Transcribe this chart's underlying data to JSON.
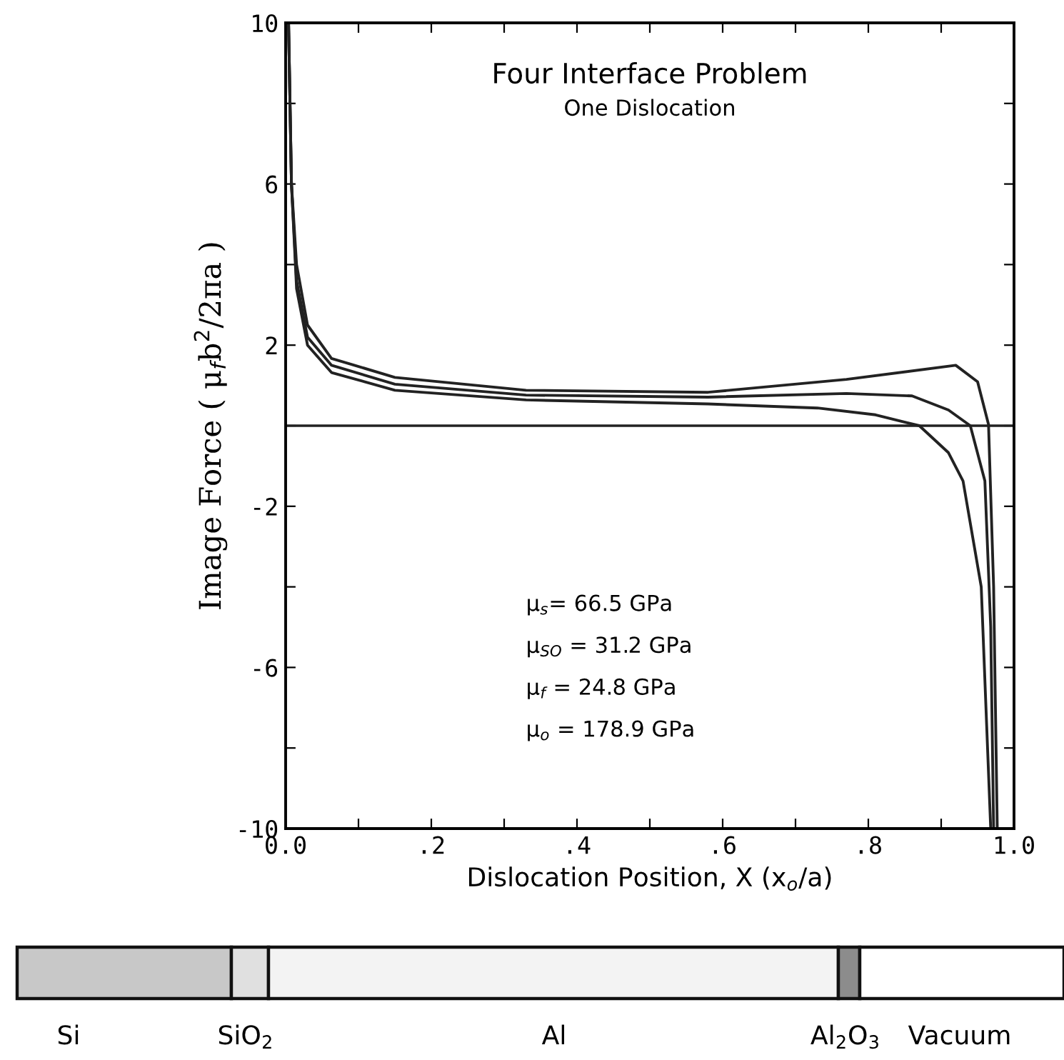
{
  "chart_data": {
    "type": "line",
    "title": "Four Interface Problem",
    "subtitle": "One Dislocation",
    "xlabel": "Dislocation Position, X (x$_{o}$/a)",
    "ylabel": "Image Force ( μ$_{f}$b$^{2}$/2πa )",
    "series": [
      {
        "color": "#222222",
        "x": [
          0.004,
          0.008,
          0.015,
          0.03,
          0.063,
          0.15,
          0.33,
          0.58,
          0.77,
          0.92,
          0.95,
          0.965,
          0.972,
          0.977
        ],
        "values": [
          10,
          6,
          4,
          2.5,
          1.67,
          1.2,
          0.88,
          0.83,
          1.15,
          1.5,
          1.09,
          0.03,
          -4,
          -10
        ]
      },
      {
        "color": "#222222",
        "x": [
          0.004,
          0.008,
          0.015,
          0.03,
          0.063,
          0.15,
          0.33,
          0.58,
          0.77,
          0.86,
          0.91,
          0.94,
          0.96,
          0.968,
          0.972
        ],
        "values": [
          10,
          6,
          3.6,
          2.2,
          1.5,
          1.03,
          0.76,
          0.71,
          0.8,
          0.74,
          0.39,
          0,
          -1.37,
          -5,
          -10
        ]
      },
      {
        "color": "#222222",
        "x": [
          0.004,
          0.008,
          0.015,
          0.03,
          0.063,
          0.15,
          0.33,
          0.58,
          0.73,
          0.81,
          0.87,
          0.91,
          0.93,
          0.955,
          0.968
        ],
        "values": [
          10,
          6,
          3.4,
          2,
          1.32,
          0.88,
          0.64,
          0.54,
          0.44,
          0.27,
          0,
          -0.67,
          -1.37,
          -4,
          -10
        ]
      }
    ],
    "xlim": [
      0,
      1
    ],
    "xticks": [
      {
        "value": 0,
        "label": "0.0"
      },
      {
        "value": 0.1,
        "label": null
      },
      {
        "value": 0.2,
        "label": ".2"
      },
      {
        "value": 0.3,
        "label": null
      },
      {
        "value": 0.4,
        "label": ".4"
      },
      {
        "value": 0.5,
        "label": null
      },
      {
        "value": 0.6,
        "label": ".6"
      },
      {
        "value": 0.7,
        "label": null
      },
      {
        "value": 0.8,
        "label": ".8"
      },
      {
        "value": 0.9,
        "label": null
      },
      {
        "value": 1,
        "label": "1.0"
      }
    ],
    "ylim": [
      -10,
      10
    ],
    "yticks": [
      -10,
      {
        "value": -8,
        "label": null
      },
      -6,
      {
        "value": -4,
        "label": null
      },
      -2,
      {
        "value": 0,
        "label": null
      },
      2,
      {
        "value": 4,
        "label": null
      },
      6,
      {
        "value": 8,
        "label": null
      },
      10
    ],
    "ref_lines": [
      {
        "axis": "y",
        "value": 0,
        "color": "#222222"
      }
    ],
    "annotations": [
      "μ$_{s}$= 66.5 GPa",
      "μ$_{SO}$ = 31.2 GPa",
      "μ$_{f}$ = 24.8 GPa",
      "μ$_{o}$ = 178.9 GPa",
      "Si",
      "SiO$_{2}$",
      "Al",
      "Al$_{2}$O$_{3}$",
      "Vacuum"
    ],
    "grid": false,
    "legend": false,
    "line_style": "solid",
    "marker": "none"
  }
}
